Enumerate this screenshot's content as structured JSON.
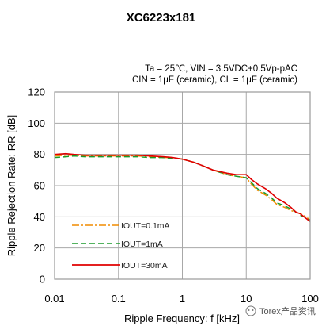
{
  "chart_data": {
    "type": "line",
    "title": "XC6223x181",
    "conditions": [
      "Ta = 25℃, VIN = 3.5VDC+0.5Vp-pAC",
      "CIN = 1μF (ceramic), CL = 1μF (ceramic)"
    ],
    "xlabel": "Ripple Frequency: f [kHz]",
    "ylabel": "Ripple Rejection Rate: RR [dB]",
    "xscale": "log",
    "xlim": [
      0.01,
      100
    ],
    "ylim": [
      0,
      120
    ],
    "xticks": [
      "0.01",
      "0.1",
      "1",
      "10",
      "100"
    ],
    "yticks": [
      "0",
      "20",
      "40",
      "60",
      "80",
      "100",
      "120"
    ],
    "grid": true,
    "legend_position": "bottom-left",
    "series": [
      {
        "name": "IOUT=0.1mA",
        "color": "#f08c00",
        "style": "dash-dot",
        "x": [
          0.01,
          0.015,
          0.02,
          0.03,
          0.05,
          0.1,
          0.2,
          0.3,
          0.5,
          0.7,
          1,
          1.5,
          2,
          3,
          5,
          7,
          10,
          12,
          15,
          20,
          25,
          30,
          40,
          50,
          60,
          70,
          80,
          100
        ],
        "y": [
          79,
          79.5,
          79.5,
          79,
          79,
          79,
          79,
          78.5,
          78,
          78,
          77,
          75,
          73,
          70,
          67,
          66,
          65,
          61,
          57,
          54,
          51,
          48,
          46,
          44,
          43,
          42,
          41,
          38
        ]
      },
      {
        "name": "IOUT=1mA",
        "color": "#1a9a2a",
        "style": "dashed",
        "x": [
          0.01,
          0.015,
          0.02,
          0.03,
          0.05,
          0.1,
          0.2,
          0.3,
          0.5,
          0.7,
          1,
          1.5,
          2,
          3,
          5,
          7,
          10,
          12,
          15,
          20,
          25,
          30,
          40,
          50,
          60,
          70,
          80,
          100
        ],
        "y": [
          78,
          78.5,
          79,
          78.5,
          78.5,
          78.5,
          78.5,
          78,
          78,
          77.5,
          77,
          75,
          73,
          70,
          67,
          66,
          65,
          62,
          58,
          55,
          52,
          49,
          47,
          45,
          43,
          41,
          40,
          38
        ]
      },
      {
        "name": "IOUT=30mA",
        "color": "#e00000",
        "style": "solid",
        "x": [
          0.01,
          0.015,
          0.02,
          0.03,
          0.05,
          0.1,
          0.2,
          0.3,
          0.5,
          0.7,
          1,
          1.5,
          2,
          3,
          5,
          7,
          10,
          12,
          15,
          20,
          25,
          30,
          40,
          50,
          60,
          70,
          80,
          100
        ],
        "y": [
          80,
          80.5,
          80,
          79.5,
          79.5,
          79.5,
          79.5,
          79,
          78.5,
          78,
          77,
          75,
          73,
          70,
          68,
          67,
          67,
          64,
          61,
          58,
          55,
          52,
          49,
          46,
          43,
          42,
          40,
          37
        ]
      }
    ]
  },
  "watermark": "Torex产品资讯"
}
